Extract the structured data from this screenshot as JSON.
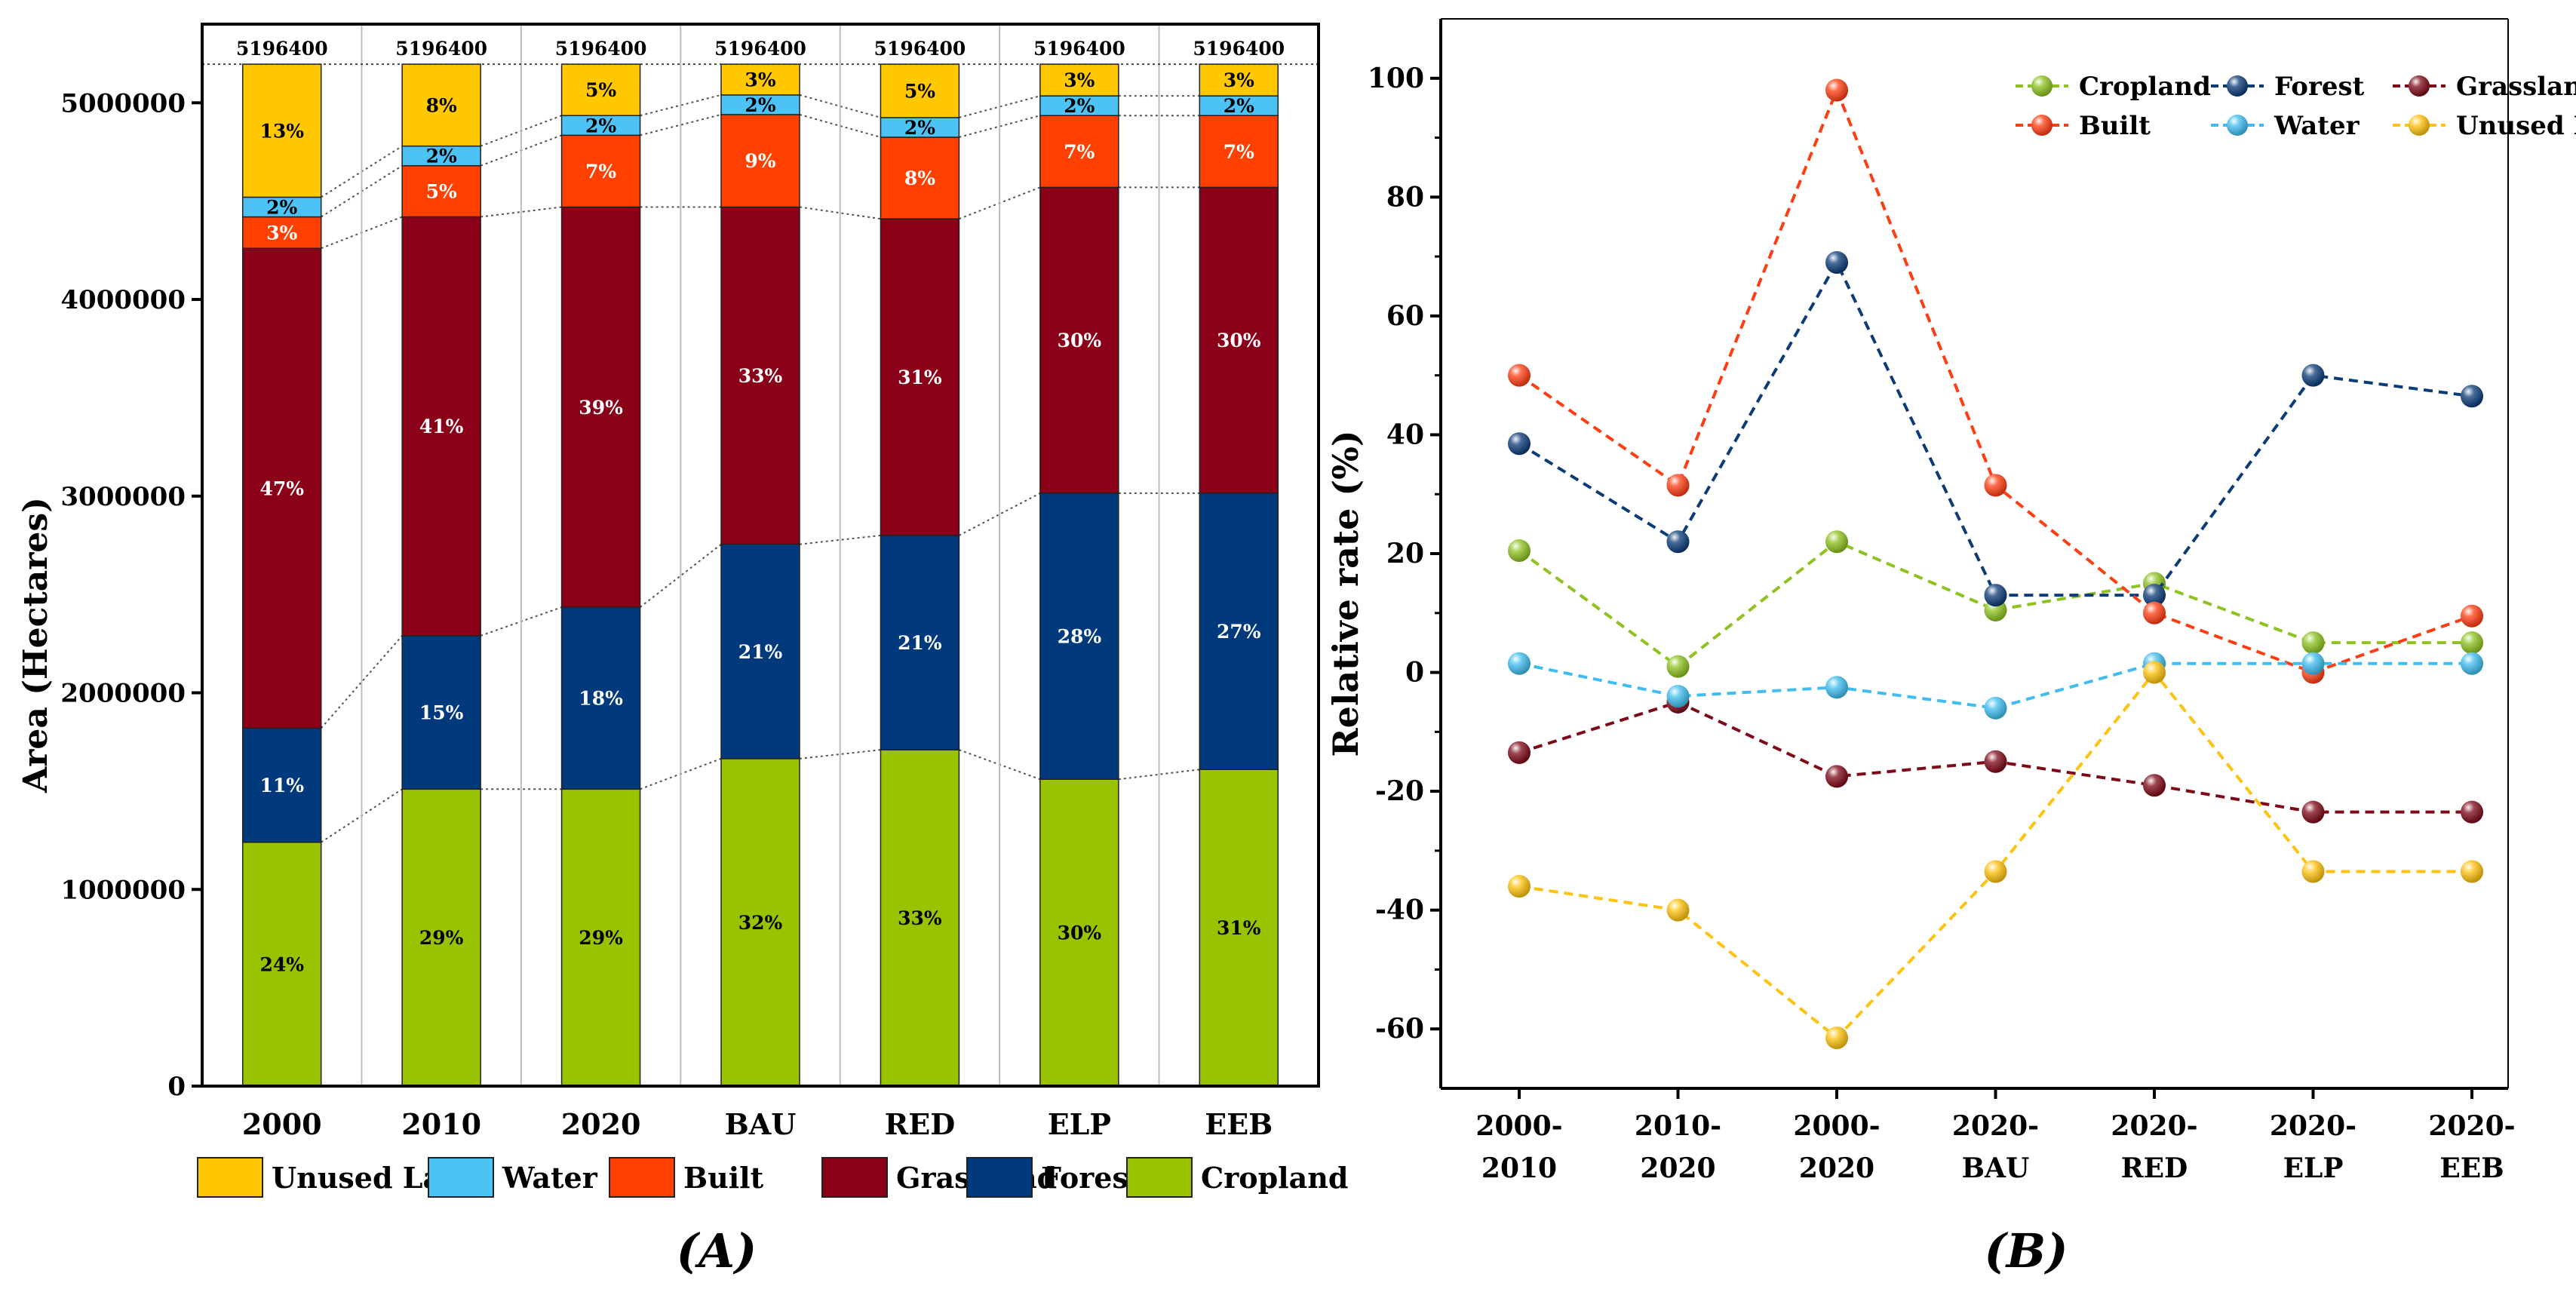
{
  "chart_data": [
    {
      "panel_label": "(A)",
      "type": "bar",
      "stacked": true,
      "ylabel": "Area (Hectares)",
      "xlabel": "",
      "ylim": [
        0,
        5400000
      ],
      "yticks": [
        0,
        1000000,
        2000000,
        3000000,
        4000000,
        5000000
      ],
      "ytick_labels": [
        "0",
        "1000000",
        "2000000",
        "3000000",
        "4000000",
        "5000000"
      ],
      "categories": [
        "2000",
        "2010",
        "2020",
        "BAU",
        "RED",
        "ELP",
        "EEB"
      ],
      "totals": [
        5196400,
        5196400,
        5196400,
        5196400,
        5196400,
        5196400,
        5196400
      ],
      "total_labels": [
        "5196400",
        "5196400",
        "5196400",
        "5196400",
        "5196400",
        "5196400",
        "5196400"
      ],
      "series": [
        {
          "name": "Cropland",
          "color": "#99C200",
          "label_color": "#000000",
          "values": [
            1240000,
            1510000,
            1510000,
            1665000,
            1710000,
            1560000,
            1610000
          ],
          "labels": [
            "24%",
            "29%",
            "29%",
            "32%",
            "33%",
            "30%",
            "31%"
          ]
        },
        {
          "name": "Forest",
          "color": "#003A7D",
          "label_color": "#ffffff",
          "values": [
            580000,
            780000,
            925000,
            1090000,
            1090000,
            1455000,
            1405000
          ],
          "labels": [
            "11%",
            "15%",
            "18%",
            "21%",
            "21%",
            "28%",
            "27%"
          ]
        },
        {
          "name": "Grassland",
          "color": "#8A0019",
          "label_color": "#ffffff",
          "values": [
            2440000,
            2130000,
            2035000,
            1715000,
            1610000,
            1555000,
            1555000
          ],
          "labels": [
            "47%",
            "41%",
            "39%",
            "33%",
            "31%",
            "30%",
            "30%"
          ]
        },
        {
          "name": "Built",
          "color": "#FF4000",
          "label_color": "#ffffff",
          "values": [
            160000,
            260000,
            365000,
            470000,
            415000,
            365000,
            365000
          ],
          "labels": [
            "3%",
            "5%",
            "7%",
            "9%",
            "8%",
            "7%",
            "7%"
          ]
        },
        {
          "name": "Water",
          "color": "#4DC3F5",
          "label_color": "#000000",
          "values": [
            100000,
            100000,
            100000,
            100000,
            100000,
            100000,
            100000
          ],
          "labels": [
            "2%",
            "2%",
            "2%",
            "2%",
            "2%",
            "2%",
            "2%"
          ]
        },
        {
          "name": "Unused Land",
          "color": "#FFC800",
          "label_color": "#000000",
          "values": [
            676400,
            416400,
            261400,
            156400,
            271400,
            161400,
            161400
          ],
          "labels": [
            "13%",
            "8%",
            "5%",
            "3%",
            "5%",
            "3%",
            "3%"
          ]
        }
      ],
      "legend": {
        "placement": "bottom",
        "order": [
          "Unused Land",
          "Water",
          "Built",
          "Grassland",
          "Forest",
          "Cropland"
        ]
      },
      "grid": false
    },
    {
      "panel_label": "(B)",
      "type": "line",
      "ylabel": "Relative rate (%)",
      "xlabel": "",
      "ylim": [
        -70,
        110
      ],
      "yticks": [
        -60,
        -40,
        -20,
        0,
        20,
        40,
        60,
        80,
        100
      ],
      "ytick_labels": [
        "-60",
        "-40",
        "-20",
        "0",
        "20",
        "40",
        "60",
        "80",
        "100"
      ],
      "categories": [
        [
          "2000-",
          "2010"
        ],
        [
          "2010-",
          "2020"
        ],
        [
          "2000-",
          "2020"
        ],
        [
          "2020-",
          "BAU"
        ],
        [
          "2020-",
          "RED"
        ],
        [
          "2020-",
          "ELP"
        ],
        [
          "2020-",
          "EEB"
        ]
      ],
      "series": [
        {
          "name": "Cropland",
          "color": "#8DC21F",
          "values": [
            20.5,
            1,
            22,
            10.5,
            15,
            5,
            5
          ]
        },
        {
          "name": "Forest",
          "color": "#0C3C78",
          "values": [
            38.5,
            22,
            69,
            13,
            13,
            50,
            46.5
          ]
        },
        {
          "name": "Grassland",
          "color": "#7E0A18",
          "values": [
            -13.5,
            -5,
            -17.5,
            -15,
            -19,
            -23.5,
            -23.5
          ]
        },
        {
          "name": "Built",
          "color": "#FF3D12",
          "values": [
            50,
            31.5,
            98,
            31.5,
            10,
            0,
            9.5
          ]
        },
        {
          "name": "Water",
          "color": "#3FBDF0",
          "values": [
            1.5,
            -4,
            -2.5,
            -6,
            1.5,
            1.5,
            1.5
          ]
        },
        {
          "name": "Unused Land",
          "color": "#FFC20E",
          "values": [
            -36,
            -40,
            -61.5,
            -33.5,
            0,
            -33.5,
            -33.5
          ]
        }
      ],
      "legend": {
        "placement": "top-right",
        "order": [
          "Cropland",
          "Forest",
          "Grassland",
          "Built",
          "Water",
          "Unused Land"
        ]
      },
      "grid": false
    }
  ]
}
